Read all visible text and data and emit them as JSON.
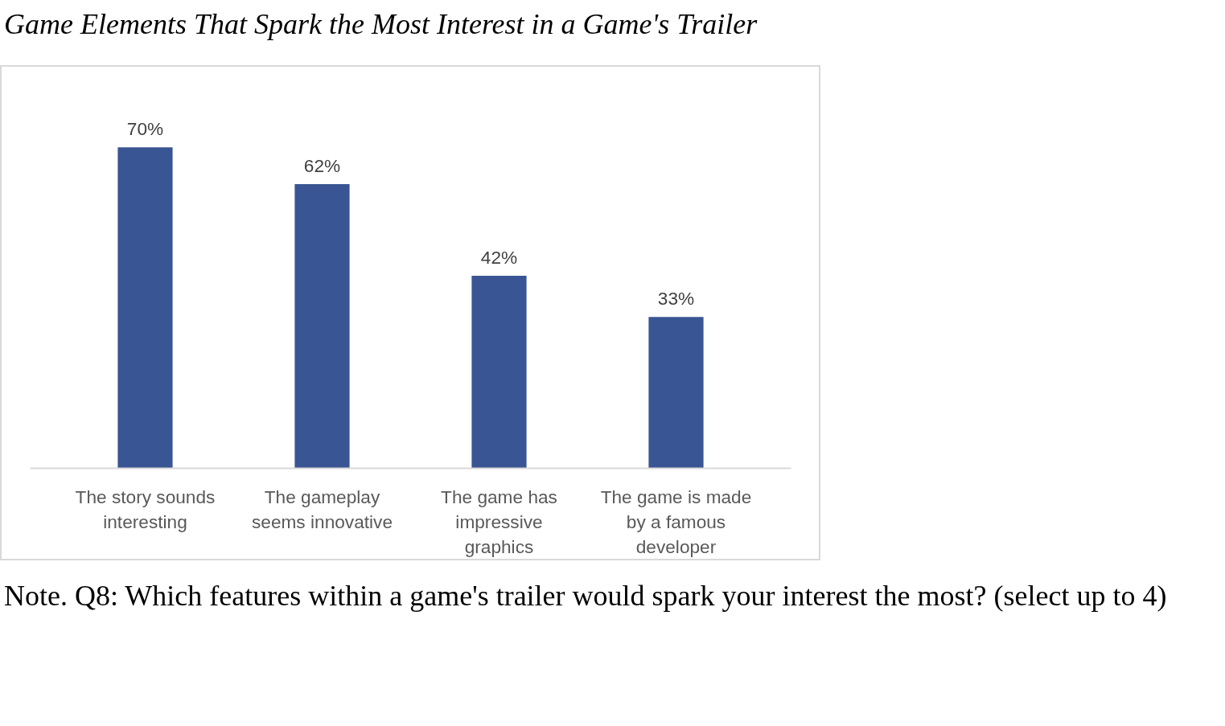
{
  "chart_data": {
    "type": "bar",
    "title": "Game Elements That Spark the Most Interest in a Game's Trailer",
    "categories": [
      "The story sounds interesting",
      "The gameplay seems innovative",
      "The game has impressive graphics",
      "The game is made by a famous developer"
    ],
    "values": [
      70,
      62,
      42,
      33
    ],
    "value_labels": [
      "70%",
      "62%",
      "42%",
      "33%"
    ],
    "color": "#3a5593",
    "annotations": [
      "Note. Q8: Which features within a game's trailer would spark your interest the most? (select up to 4)"
    ]
  }
}
